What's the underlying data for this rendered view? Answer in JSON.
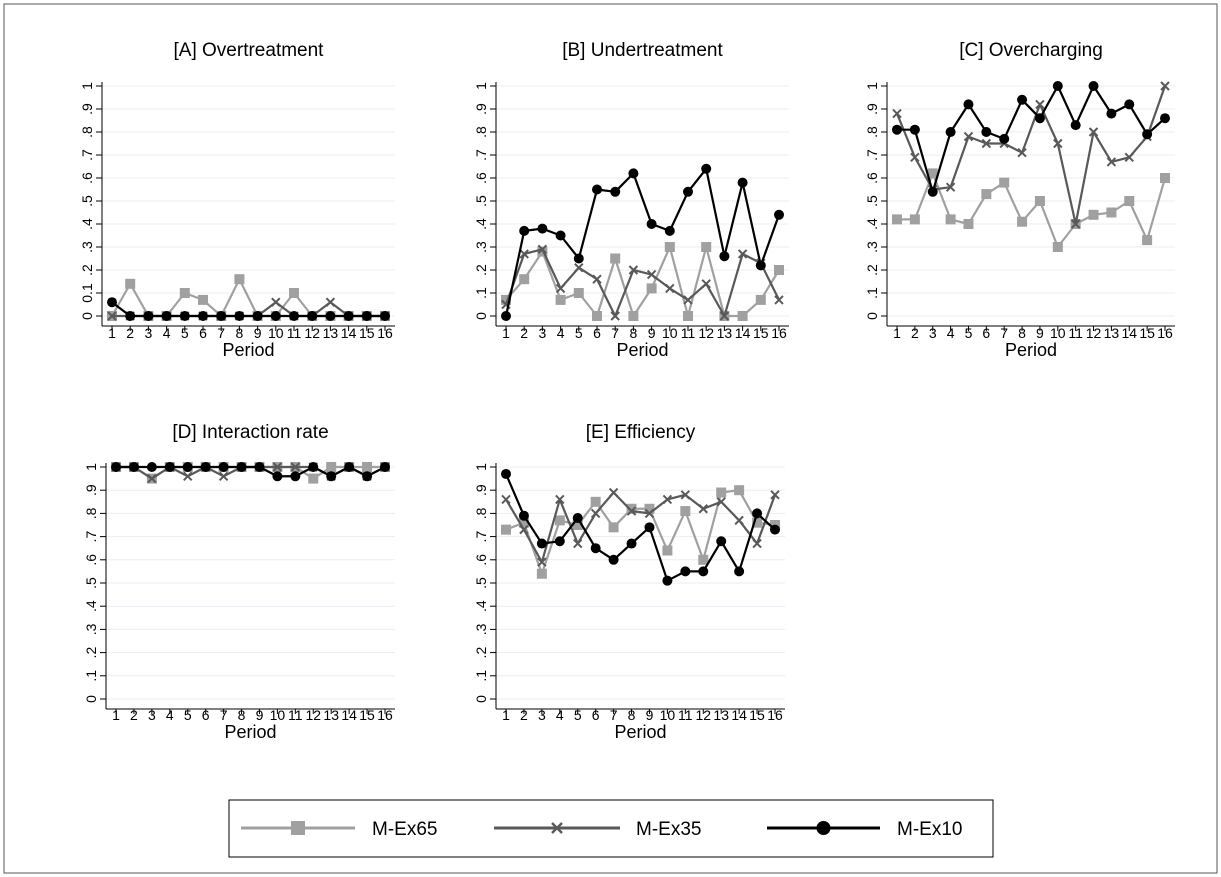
{
  "colors": {
    "M-Ex65": "#a0a0a0",
    "M-Ex35": "#595959",
    "M-Ex10": "#000000",
    "grid": "#e8eef3",
    "frame": "#555555"
  },
  "legend": {
    "placement": "bottom",
    "entries": [
      {
        "name": "M-Ex65",
        "marker": "square"
      },
      {
        "name": "M-Ex35",
        "marker": "x"
      },
      {
        "name": "M-Ex10",
        "marker": "circle"
      }
    ]
  },
  "chart_data": [
    {
      "type": "line",
      "title": "[A] Overtreatment",
      "xlabel": "Period",
      "ylabel": "",
      "x": [
        1,
        2,
        3,
        4,
        5,
        6,
        7,
        8,
        9,
        10,
        11,
        12,
        13,
        14,
        15,
        16
      ],
      "xtick_labels": [
        "1",
        "2",
        "3",
        "4",
        "5",
        "6",
        "7",
        "8",
        "9",
        "10",
        "11",
        "12",
        "13",
        "14",
        "15",
        "16"
      ],
      "ylim": [
        0,
        1
      ],
      "ytick_labels": [
        "0",
        "0.1",
        ".2",
        ".3",
        ".4",
        ".5",
        ".6",
        ".7",
        ".8",
        ".9",
        "1"
      ],
      "grid": true,
      "series": [
        {
          "name": "M-Ex65",
          "marker": "square",
          "values": [
            0,
            0.14,
            0,
            0,
            0.1,
            0.07,
            0,
            0.16,
            0,
            0,
            0.1,
            0,
            0,
            0,
            0,
            0
          ]
        },
        {
          "name": "M-Ex35",
          "marker": "x",
          "values": [
            0,
            0,
            0,
            0,
            0,
            0,
            0,
            0,
            0,
            0.06,
            0,
            0,
            0.06,
            0,
            0,
            0
          ]
        },
        {
          "name": "M-Ex10",
          "marker": "circle",
          "values": [
            0.06,
            0,
            0,
            0,
            0,
            0,
            0,
            0,
            0,
            0,
            0,
            0,
            0,
            0,
            0,
            0
          ]
        }
      ]
    },
    {
      "type": "line",
      "title": "[B] Undertreatment",
      "xlabel": "Period",
      "ylabel": "",
      "x": [
        1,
        2,
        3,
        4,
        5,
        6,
        7,
        8,
        9,
        10,
        11,
        12,
        13,
        14,
        15,
        16
      ],
      "xtick_labels": [
        "1",
        "2",
        "3",
        "4",
        "5",
        "6",
        "7",
        "8",
        "9",
        "10",
        "11",
        "12",
        "13",
        "14",
        "15",
        "16"
      ],
      "ylim": [
        0,
        1
      ],
      "ytick_labels": [
        "0",
        ".1",
        ".2",
        ".3",
        ".4",
        ".5",
        ".6",
        ".7",
        ".8",
        ".9",
        "1"
      ],
      "grid": true,
      "series": [
        {
          "name": "M-Ex65",
          "marker": "square",
          "values": [
            0.07,
            0.16,
            0.28,
            0.07,
            0.1,
            0,
            0.25,
            0,
            0.12,
            0.3,
            0,
            0.3,
            0,
            0,
            0.07,
            0.2
          ]
        },
        {
          "name": "M-Ex35",
          "marker": "x",
          "values": [
            0.05,
            0.27,
            0.29,
            0.12,
            0.21,
            0.16,
            0,
            0.2,
            0.18,
            0.12,
            0.07,
            0.14,
            0,
            0.27,
            0.23,
            0.07
          ]
        },
        {
          "name": "M-Ex10",
          "marker": "circle",
          "values": [
            0,
            0.37,
            0.38,
            0.35,
            0.25,
            0.55,
            0.54,
            0.62,
            0.4,
            0.37,
            0.54,
            0.64,
            0.26,
            0.58,
            0.22,
            0.44
          ]
        }
      ]
    },
    {
      "type": "line",
      "title": "[C] Overcharging",
      "xlabel": "Period",
      "ylabel": "",
      "x": [
        1,
        2,
        3,
        4,
        5,
        6,
        7,
        8,
        9,
        10,
        11,
        12,
        13,
        14,
        15,
        16
      ],
      "xtick_labels": [
        "1",
        "2",
        "3",
        "4",
        "5",
        "6",
        "7",
        "8",
        "9",
        "10",
        "11",
        "12",
        "13",
        "14",
        "15",
        "16"
      ],
      "ylim": [
        0,
        1
      ],
      "ytick_labels": [
        "0",
        ".1",
        ".2",
        ".3",
        ".4",
        ".5",
        ".6",
        ".7",
        ".8",
        ".9",
        "1"
      ],
      "grid": true,
      "series": [
        {
          "name": "M-Ex65",
          "marker": "square",
          "values": [
            0.42,
            0.42,
            0.62,
            0.42,
            0.4,
            0.53,
            0.58,
            0.41,
            0.5,
            0.3,
            0.4,
            0.44,
            0.45,
            0.5,
            0.33,
            0.6
          ]
        },
        {
          "name": "M-Ex35",
          "marker": "x",
          "values": [
            0.88,
            0.69,
            0.55,
            0.56,
            0.78,
            0.75,
            0.75,
            0.71,
            0.92,
            0.75,
            0.4,
            0.8,
            0.67,
            0.69,
            0.78,
            1
          ]
        },
        {
          "name": "M-Ex10",
          "marker": "circle",
          "values": [
            0.81,
            0.81,
            0.54,
            0.8,
            0.92,
            0.8,
            0.77,
            0.94,
            0.86,
            1,
            0.83,
            1,
            0.88,
            0.92,
            0.79,
            0.86
          ]
        }
      ]
    },
    {
      "type": "line",
      "title": "[D] Interaction rate",
      "xlabel": "Period",
      "ylabel": "",
      "x": [
        1,
        2,
        3,
        4,
        5,
        6,
        7,
        8,
        9,
        10,
        11,
        12,
        13,
        14,
        15,
        16
      ],
      "xtick_labels": [
        "1",
        "2",
        "3",
        "4",
        "5",
        "6",
        "7",
        "8",
        "9",
        "10",
        "11",
        "12",
        "13",
        "14",
        "15",
        "16"
      ],
      "ylim": [
        0,
        1
      ],
      "ytick_labels": [
        "0",
        ".1",
        ".2",
        ".3",
        ".4",
        ".5",
        ".6",
        ".7",
        ".8",
        ".9",
        "1"
      ],
      "grid": true,
      "series": [
        {
          "name": "M-Ex65",
          "marker": "square",
          "values": [
            1,
            1,
            0.95,
            1,
            1,
            1,
            1,
            1,
            1,
            1,
            1,
            0.95,
            1,
            1,
            1,
            1
          ]
        },
        {
          "name": "M-Ex35",
          "marker": "x",
          "values": [
            1,
            1,
            0.95,
            1,
            0.96,
            1,
            0.96,
            1,
            1,
            1,
            1,
            1,
            0.96,
            1,
            0.96,
            1
          ]
        },
        {
          "name": "M-Ex10",
          "marker": "circle",
          "values": [
            1,
            1,
            1,
            1,
            1,
            1,
            1,
            1,
            1,
            0.96,
            0.96,
            1,
            0.96,
            1,
            0.96,
            1
          ]
        }
      ]
    },
    {
      "type": "line",
      "title": "[E] Efficiency",
      "xlabel": "Period",
      "ylabel": "",
      "x": [
        1,
        2,
        3,
        4,
        5,
        6,
        7,
        8,
        9,
        10,
        11,
        12,
        13,
        14,
        15,
        16
      ],
      "xtick_labels": [
        "1",
        "2",
        "3",
        "4",
        "5",
        "6",
        "7",
        "8",
        "9",
        "10",
        "11",
        "12",
        "13",
        "14",
        "15",
        "16"
      ],
      "ylim": [
        0,
        1
      ],
      "ytick_labels": [
        "0",
        ".1",
        ".2",
        ".3",
        ".4",
        ".5",
        ".6",
        ".7",
        ".8",
        ".9",
        "1"
      ],
      "grid": true,
      "series": [
        {
          "name": "M-Ex65",
          "marker": "square",
          "values": [
            0.73,
            0.76,
            0.54,
            0.77,
            0.75,
            0.85,
            0.74,
            0.82,
            0.82,
            0.64,
            0.81,
            0.6,
            0.89,
            0.9,
            0.76,
            0.75
          ]
        },
        {
          "name": "M-Ex35",
          "marker": "x",
          "values": [
            0.86,
            0.73,
            0.59,
            0.86,
            0.67,
            0.8,
            0.89,
            0.81,
            0.8,
            0.86,
            0.88,
            0.82,
            0.85,
            0.77,
            0.67,
            0.88
          ]
        },
        {
          "name": "M-Ex10",
          "marker": "circle",
          "values": [
            0.97,
            0.79,
            0.67,
            0.68,
            0.78,
            0.65,
            0.6,
            0.67,
            0.74,
            0.51,
            0.55,
            0.55,
            0.68,
            0.55,
            0.8,
            0.73
          ]
        }
      ]
    }
  ]
}
